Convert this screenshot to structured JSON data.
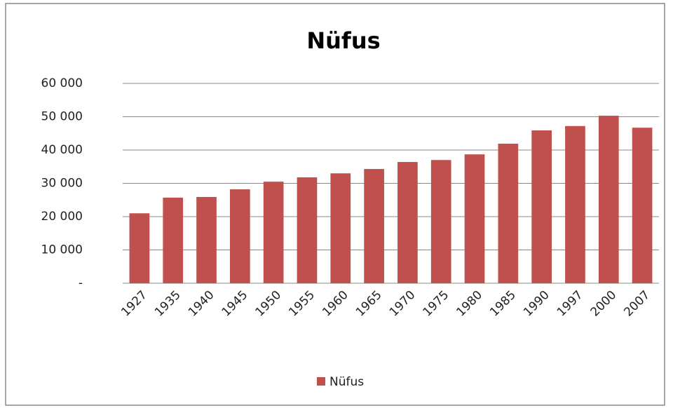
{
  "chart_data": {
    "type": "bar",
    "title": "Nüfus",
    "categories": [
      "1927",
      "1935",
      "1940",
      "1945",
      "1950",
      "1955",
      "1960",
      "1965",
      "1970",
      "1975",
      "1980",
      "1985",
      "1990",
      "1997",
      "2000",
      "2007"
    ],
    "series": [
      {
        "name": "Nüfus",
        "color": "#c0504d",
        "values": [
          21000,
          25700,
          25900,
          28200,
          30500,
          31800,
          33000,
          34300,
          36400,
          37000,
          38700,
          41900,
          45900,
          47200,
          50300,
          46700
        ]
      }
    ],
    "ylim": [
      0,
      60000
    ],
    "yticks": [
      {
        "value": 0,
        "label": "-"
      },
      {
        "value": 10000,
        "label": "10 000"
      },
      {
        "value": 20000,
        "label": "20 000"
      },
      {
        "value": 30000,
        "label": "30 000"
      },
      {
        "value": 40000,
        "label": "40 000"
      },
      {
        "value": 50000,
        "label": "50 000"
      },
      {
        "value": 60000,
        "label": "60 000"
      }
    ],
    "grid": true,
    "legend": "bottom"
  }
}
